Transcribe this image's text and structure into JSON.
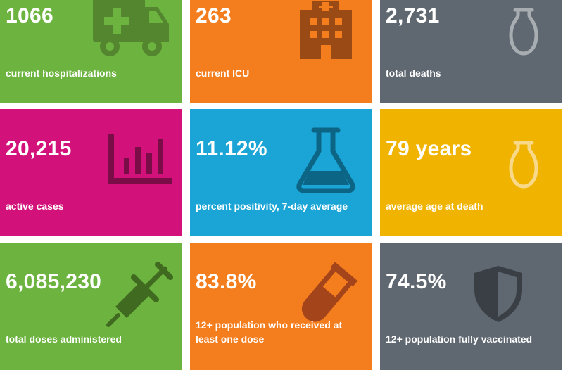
{
  "tiles": [
    {
      "value": "1066",
      "label": "current hospitalizations",
      "color": "#6db33f",
      "icon": "ambulance-icon"
    },
    {
      "value": "263",
      "label": "current ICU",
      "color": "#f47d1e",
      "icon": "hospital-building-icon"
    },
    {
      "value": "2,731",
      "label": "total deaths",
      "color": "#5f6770",
      "icon": "urn-icon"
    },
    {
      "value": "20,215",
      "label": "active cases",
      "color": "#d2127a",
      "icon": "bar-chart-icon"
    },
    {
      "value": "11.12%",
      "label": "percent positivity, 7-day average",
      "color": "#1aa5d6",
      "icon": "flask-icon"
    },
    {
      "value": "79 years",
      "label": "average age at death",
      "color": "#f0b400",
      "icon": "urn-icon"
    },
    {
      "value": "6,085,230",
      "label": "total doses administered",
      "color": "#6db33f",
      "icon": "syringe-icon"
    },
    {
      "value": "83.8%",
      "label_lines": [
        "12+ population who received at",
        "least one dose"
      ],
      "color": "#f47d1e",
      "icon": "test-tube-icon"
    },
    {
      "value": "74.5%",
      "label": "12+ population fully vaccinated",
      "color": "#5f6770",
      "icon": "shield-icon"
    }
  ]
}
